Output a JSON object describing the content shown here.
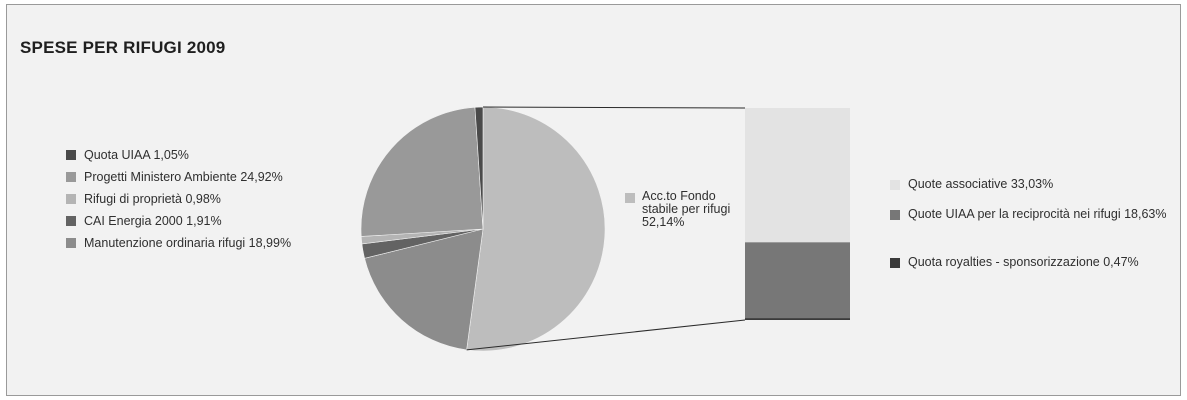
{
  "chart_data": {
    "type": "pie",
    "title": "SPESE PER RIFUGI 2009",
    "slices": [
      {
        "label": "Acc.to Fondo stabile per rifugi 52,14%",
        "value": 52.14,
        "color": "#bdbdbd"
      },
      {
        "label": "Manutenzione ordinaria rifugi 18,99%",
        "value": 18.99,
        "color": "#8c8c8c"
      },
      {
        "label": "CAI Energia 2000 1,91%",
        "value": 1.91,
        "color": "#636363"
      },
      {
        "label": "Rifugi di proprietà 0,98%",
        "value": 0.98,
        "color": "#b4b4b4"
      },
      {
        "label": "Progetti Ministero Ambiente 24,92%",
        "value": 24.92,
        "color": "#999999"
      },
      {
        "label": "Quota UIAA 1,05%",
        "value": 1.05,
        "color": "#4a4a4a"
      }
    ],
    "left_legend": [
      {
        "label": "Quota UIAA 1,05%",
        "color": "#4a4a4a"
      },
      {
        "label": "Progetti Ministero Ambiente 24,92%",
        "color": "#999999"
      },
      {
        "label": "Rifugi di proprietà 0,98%",
        "color": "#b4b4b4"
      },
      {
        "label": "CAI Energia 2000 1,91%",
        "color": "#636363"
      },
      {
        "label": "Manutenzione ordinaria rifugi 18,99%",
        "color": "#8c8c8c"
      }
    ],
    "exploded_label": "Acc.to Fondo stabile per rifugi 52,14%",
    "breakdown": {
      "type": "stacked-bar",
      "of": "Acc.to Fondo stabile per rifugi",
      "segments": [
        {
          "label": "Quote associative 33,03%",
          "value": 33.03,
          "color": "#e3e3e3"
        },
        {
          "label": "Quote UIAA per la reciprocità nei rifugi 18,63%",
          "value": 18.63,
          "color": "#777777"
        },
        {
          "label": "Quota royalties - sponsorizzazione 0,47%",
          "value": 0.47,
          "color": "#3a3a3a"
        }
      ]
    },
    "legend_placement": "left-and-right",
    "grid": false
  }
}
